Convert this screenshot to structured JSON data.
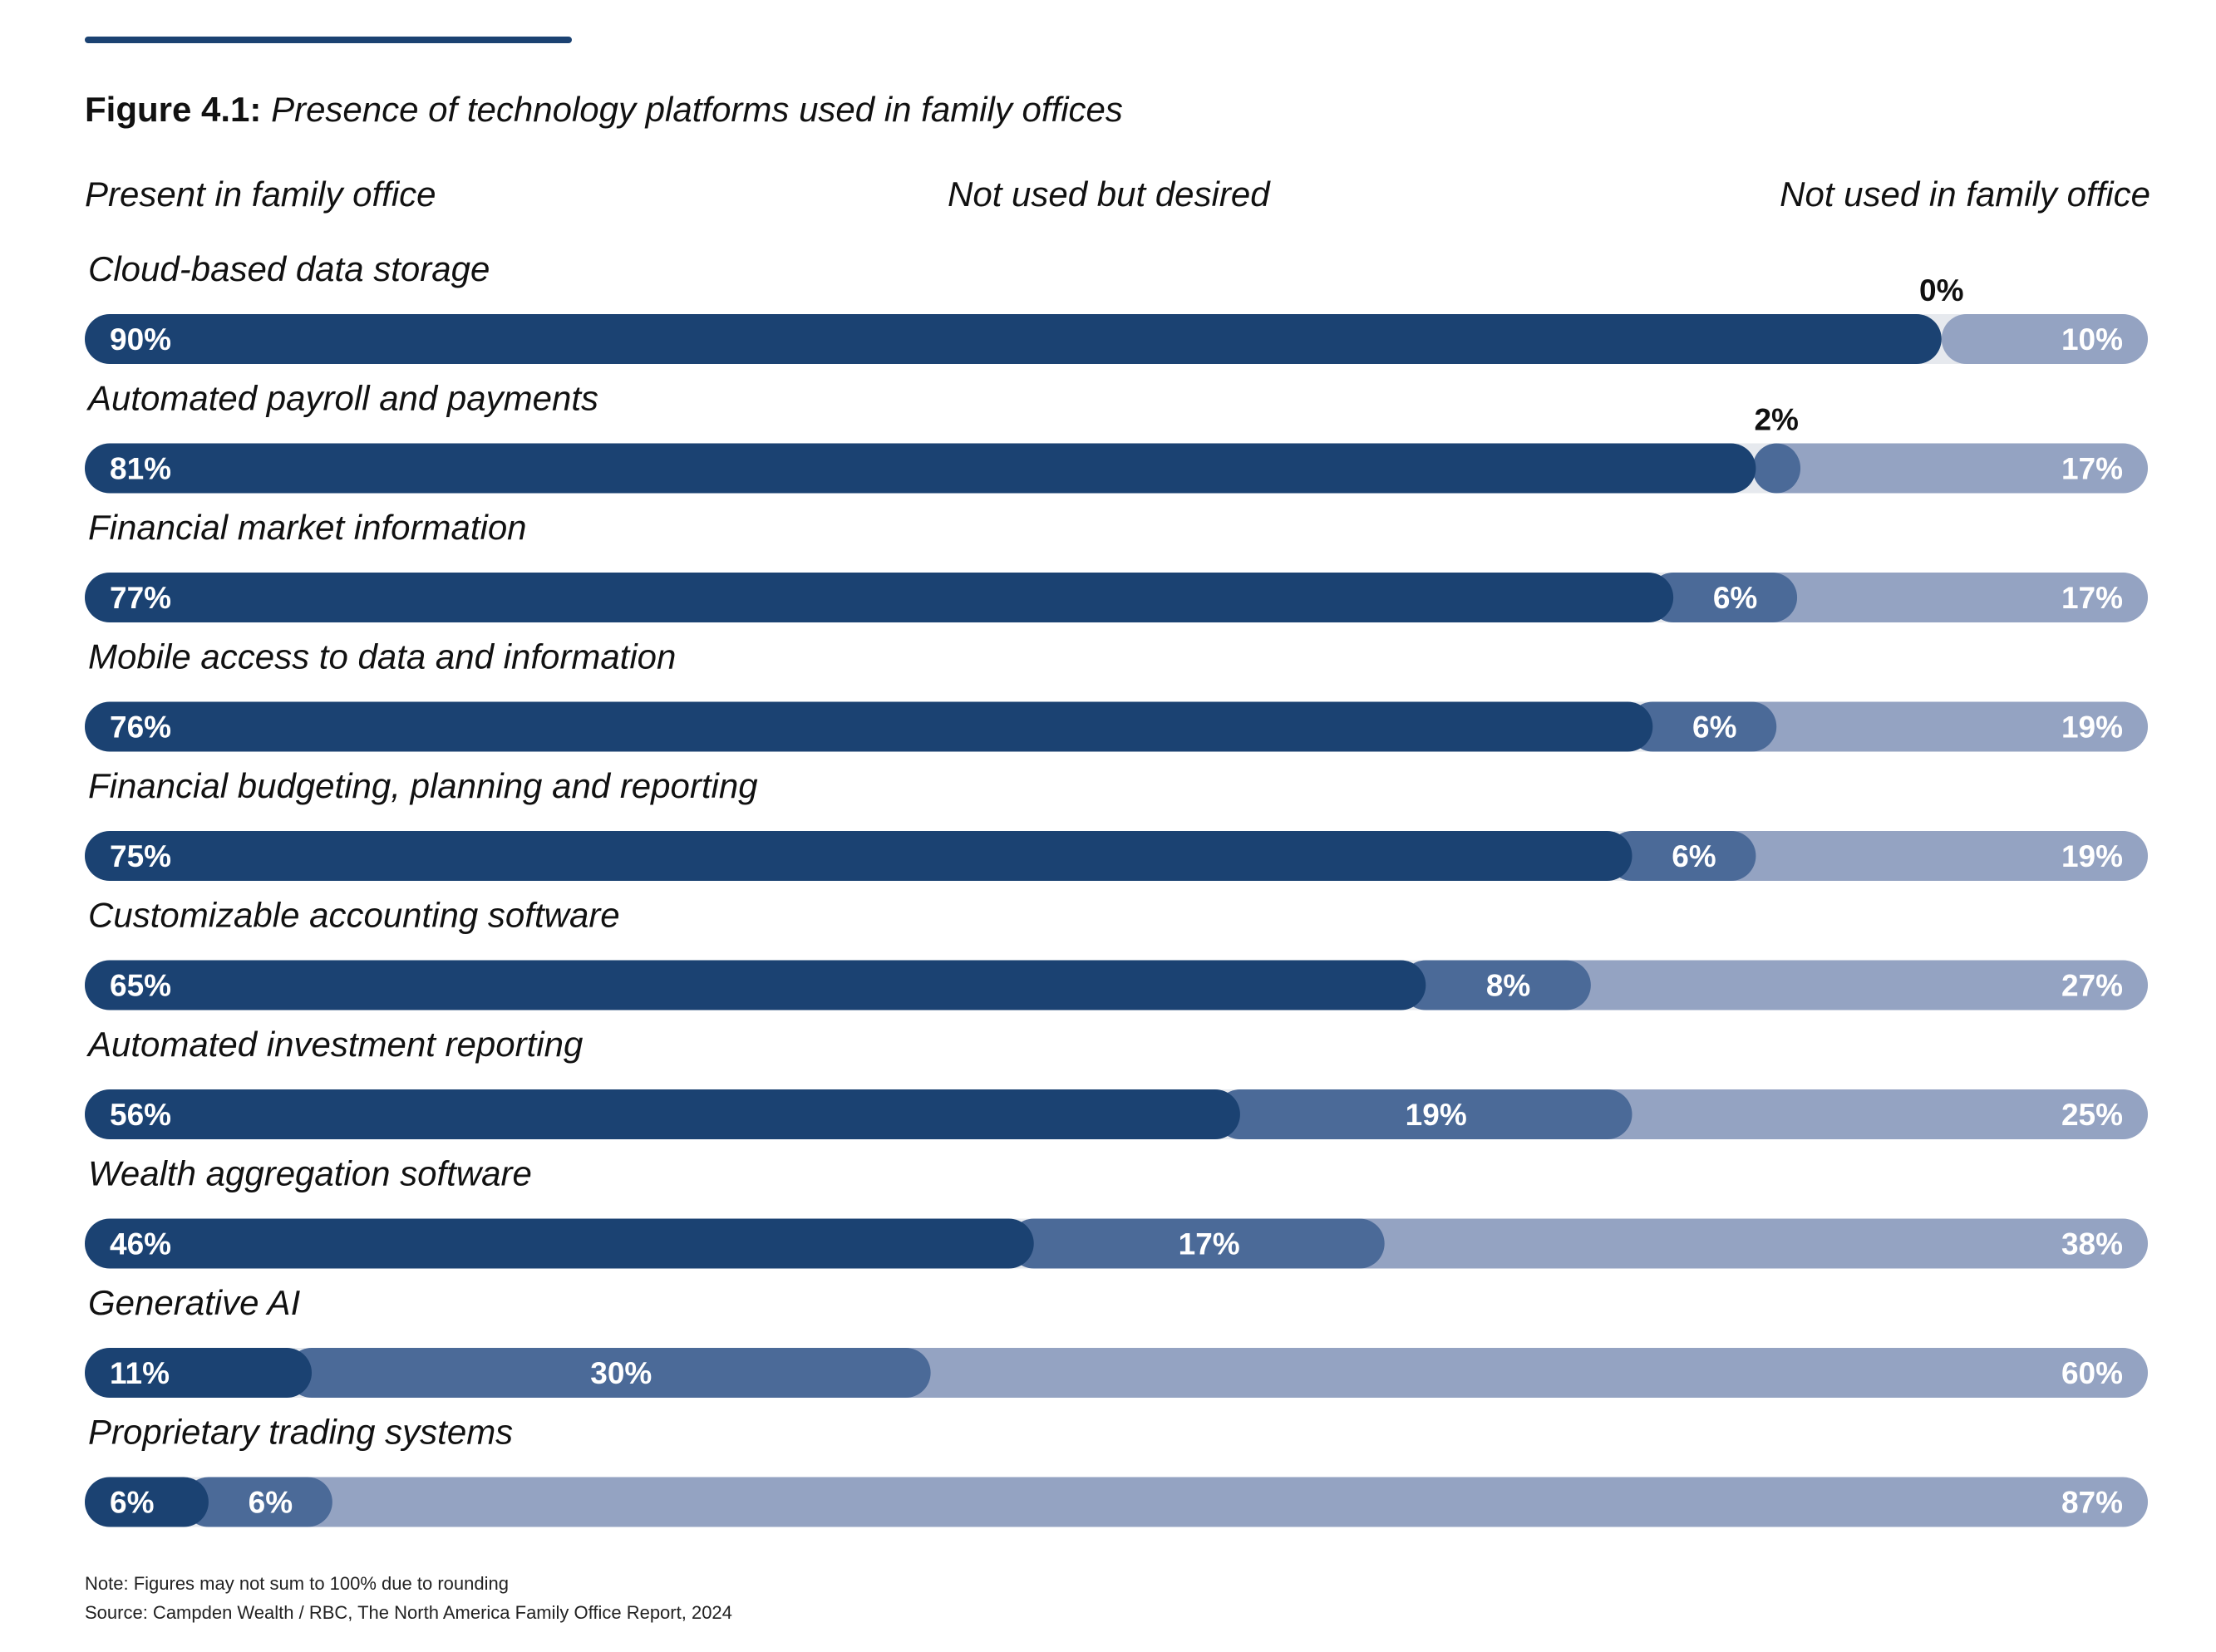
{
  "figure": {
    "label": "Figure 4.1:",
    "title": "Presence of technology platforms used in family offices"
  },
  "legend": {
    "present": "Present in family office",
    "desired": "Not used but desired",
    "not_used": "Not used in family office"
  },
  "colors": {
    "present": "#1b4272",
    "desired": "#4b6a98",
    "not_used": "#94a3c2",
    "track": "#e6e9ee",
    "rule": "#1b4272"
  },
  "chart_data": {
    "type": "bar",
    "orientation": "horizontal",
    "stacked": true,
    "unit": "%",
    "categories": [
      "Cloud-based data storage",
      "Automated payroll and payments",
      "Financial market information",
      "Mobile access to data and information",
      "Financial budgeting, planning and reporting",
      "Customizable accounting software",
      "Automated investment reporting",
      "Wealth aggregation software",
      "Generative AI",
      "Proprietary trading systems"
    ],
    "series": [
      {
        "name": "Present in family office",
        "values": [
          90,
          81,
          77,
          76,
          75,
          65,
          56,
          46,
          11,
          6
        ]
      },
      {
        "name": "Not used but desired",
        "values": [
          0,
          2,
          6,
          6,
          6,
          8,
          19,
          17,
          30,
          6
        ]
      },
      {
        "name": "Not used in family office",
        "values": [
          10,
          17,
          17,
          19,
          19,
          27,
          25,
          38,
          60,
          87
        ]
      }
    ],
    "value_labels": [
      [
        "90%",
        "0%",
        "10%"
      ],
      [
        "81%",
        "2%",
        "17%"
      ],
      [
        "77%",
        "6%",
        "17%"
      ],
      [
        "76%",
        "6%",
        "19%"
      ],
      [
        "75%",
        "6%",
        "19%"
      ],
      [
        "65%",
        "8%",
        "27%"
      ],
      [
        "56%",
        "19%",
        "25%"
      ],
      [
        "46%",
        "17%",
        "38%"
      ],
      [
        "11%",
        "30%",
        "60%"
      ],
      [
        "6%",
        "6%",
        "87%"
      ]
    ],
    "xlim": [
      0,
      100
    ],
    "legend_position": "top"
  },
  "notes": {
    "note": "Note: Figures may not sum to 100% due to rounding",
    "source": "Source: Campden Wealth / RBC, The North America Family Office Report, 2024"
  }
}
